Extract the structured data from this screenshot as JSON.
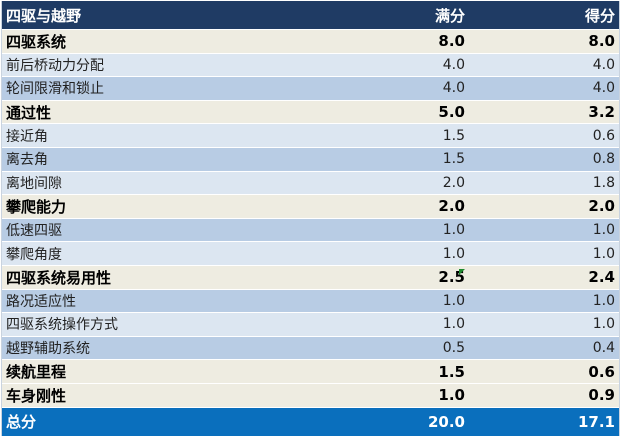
{
  "header": {
    "category": "四驱与越野",
    "full_score": "满分",
    "score": "得分"
  },
  "rows": [
    {
      "label": "四驱系统",
      "full": "8.0",
      "score": "8.0",
      "kind": "major"
    },
    {
      "label": "前后桥动力分配",
      "full": "4.0",
      "score": "4.0",
      "kind": "light"
    },
    {
      "label": "轮间限滑和锁止",
      "full": "4.0",
      "score": "4.0",
      "kind": "dark"
    },
    {
      "label": "通过性",
      "full": "5.0",
      "score": "3.2",
      "kind": "major"
    },
    {
      "label": "接近角",
      "full": "1.5",
      "score": "0.6",
      "kind": "light"
    },
    {
      "label": "离去角",
      "full": "1.5",
      "score": "0.8",
      "kind": "dark"
    },
    {
      "label": "离地间隙",
      "full": "2.0",
      "score": "1.8",
      "kind": "light"
    },
    {
      "label": "攀爬能力",
      "full": "2.0",
      "score": "2.0",
      "kind": "major"
    },
    {
      "label": "低速四驱",
      "full": "1.0",
      "score": "1.0",
      "kind": "dark"
    },
    {
      "label": "攀爬角度",
      "full": "1.0",
      "score": "1.0",
      "kind": "light"
    },
    {
      "label": "四驱系统易用性",
      "full": "2.5",
      "score": "2.4",
      "kind": "major"
    },
    {
      "label": "路况适应性",
      "full": "1.0",
      "score": "1.0",
      "kind": "dark"
    },
    {
      "label": "四驱系统操作方式",
      "full": "1.0",
      "score": "1.0",
      "kind": "light"
    },
    {
      "label": "越野辅助系统",
      "full": "0.5",
      "score": "0.4",
      "kind": "dark"
    },
    {
      "label": "续航里程",
      "full": "1.5",
      "score": "0.6",
      "kind": "major"
    },
    {
      "label": "车身刚性",
      "full": "1.0",
      "score": "0.9",
      "kind": "major"
    }
  ],
  "total": {
    "label": "总分",
    "full": "20.0",
    "score": "17.1"
  },
  "colors": {
    "header_bg": "#1f3b64",
    "major_bg": "#eeece1",
    "light_bg": "#dce6f1",
    "dark_bg": "#b8cce4",
    "total_bg": "#0a6fbd"
  }
}
